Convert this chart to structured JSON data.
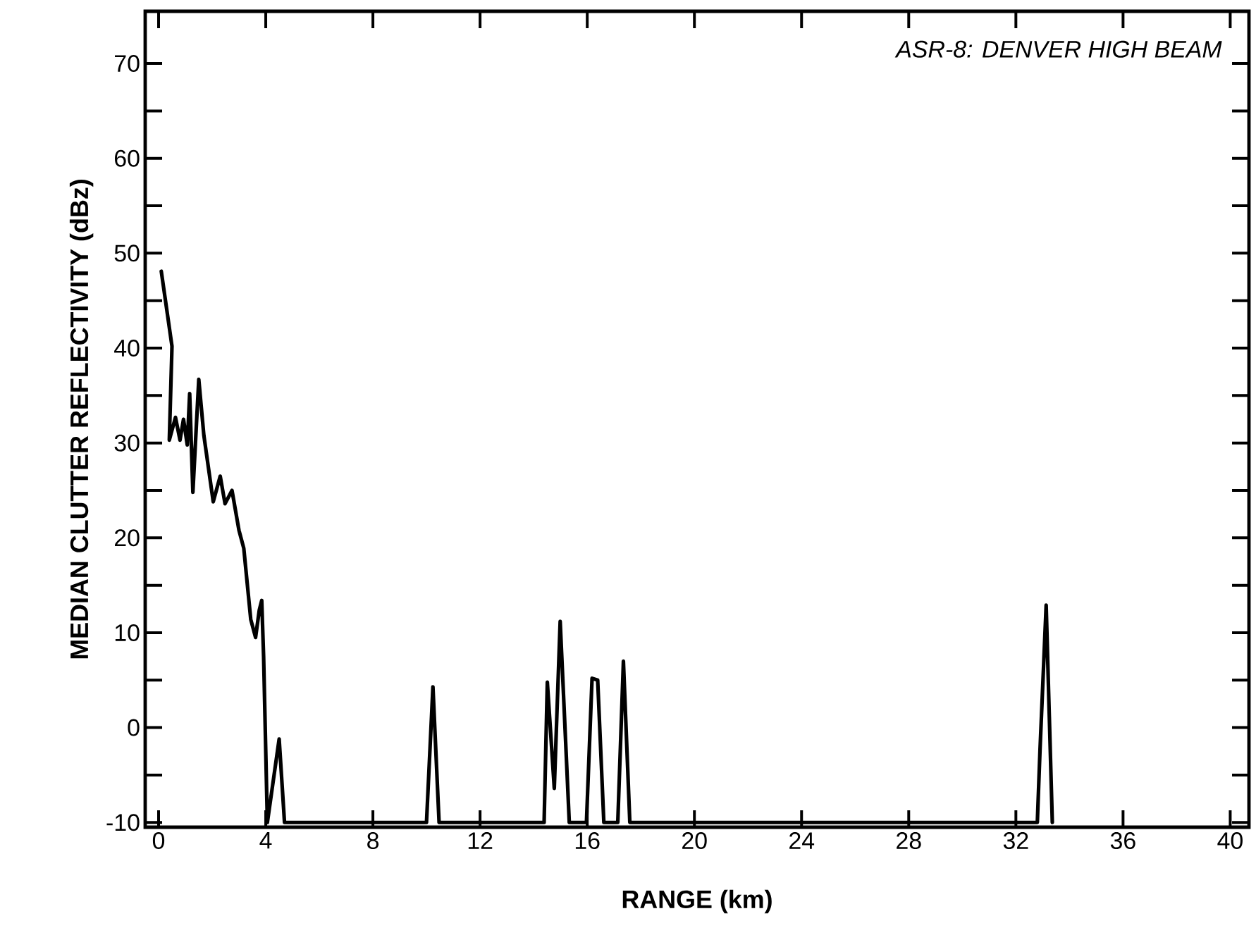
{
  "chart_data": {
    "type": "line",
    "xlabel": "RANGE (km)",
    "ylabel": "MEDIAN CLUTTER REFLECTIVITY (dBz)",
    "annotations": [
      "*ASR-8: DENVER HIGH BEAM*"
    ],
    "x": [
      0.1,
      0.5,
      0.4,
      0.63,
      0.8,
      0.93,
      1.07,
      1.16,
      1.28,
      1.5,
      1.69,
      2.04,
      2.3,
      2.48,
      2.74,
      3.0,
      3.18,
      3.44,
      3.62,
      3.76,
      3.85,
      3.92,
      4.06,
      4.5,
      4.7,
      10.0,
      10.24,
      10.47,
      14.39,
      14.51,
      14.77,
      14.99,
      15.33,
      15.97,
      16.18,
      16.39,
      16.62,
      17.14,
      17.35,
      17.59,
      32.8,
      32.9,
      33.13,
      33.36
    ],
    "series": [
      {
        "color": "#000000",
        "values": [
          48.1,
          40.2,
          30.3,
          32.7,
          30.3,
          32.5,
          29.8,
          35.2,
          24.8,
          36.7,
          30.8,
          23.8,
          26.5,
          23.6,
          25.0,
          20.8,
          18.9,
          11.4,
          9.5,
          12.4,
          13.4,
          7.5,
          -10,
          -1.2,
          -10,
          -10,
          4.3,
          -10,
          -10,
          4.8,
          -6.4,
          11.2,
          -10,
          -10,
          5.2,
          5.0,
          -10,
          -10,
          7.0,
          -10,
          -10,
          -2.4,
          12.9,
          -10
        ]
      }
    ],
    "xlim": [
      -0.5,
      40.7
    ],
    "ylim": [
      -10.5,
      75.5
    ],
    "xticks": [
      0,
      4,
      8,
      12,
      16,
      20,
      24,
      28,
      32,
      36,
      40
    ],
    "yticks": [
      {
        "value": -10,
        "label": "-10"
      },
      {
        "value": -5,
        "label": null
      },
      0,
      {
        "value": 5,
        "label": null
      },
      10,
      {
        "value": 15,
        "label": null
      },
      20,
      {
        "value": 25,
        "label": null
      },
      30,
      {
        "value": 35,
        "label": null
      },
      40,
      {
        "value": 45,
        "label": null
      },
      50,
      {
        "value": 55,
        "label": null
      },
      60,
      {
        "value": 65,
        "label": null
      },
      70
    ],
    "grid": false,
    "marker": "none",
    "line_style": "solid"
  }
}
